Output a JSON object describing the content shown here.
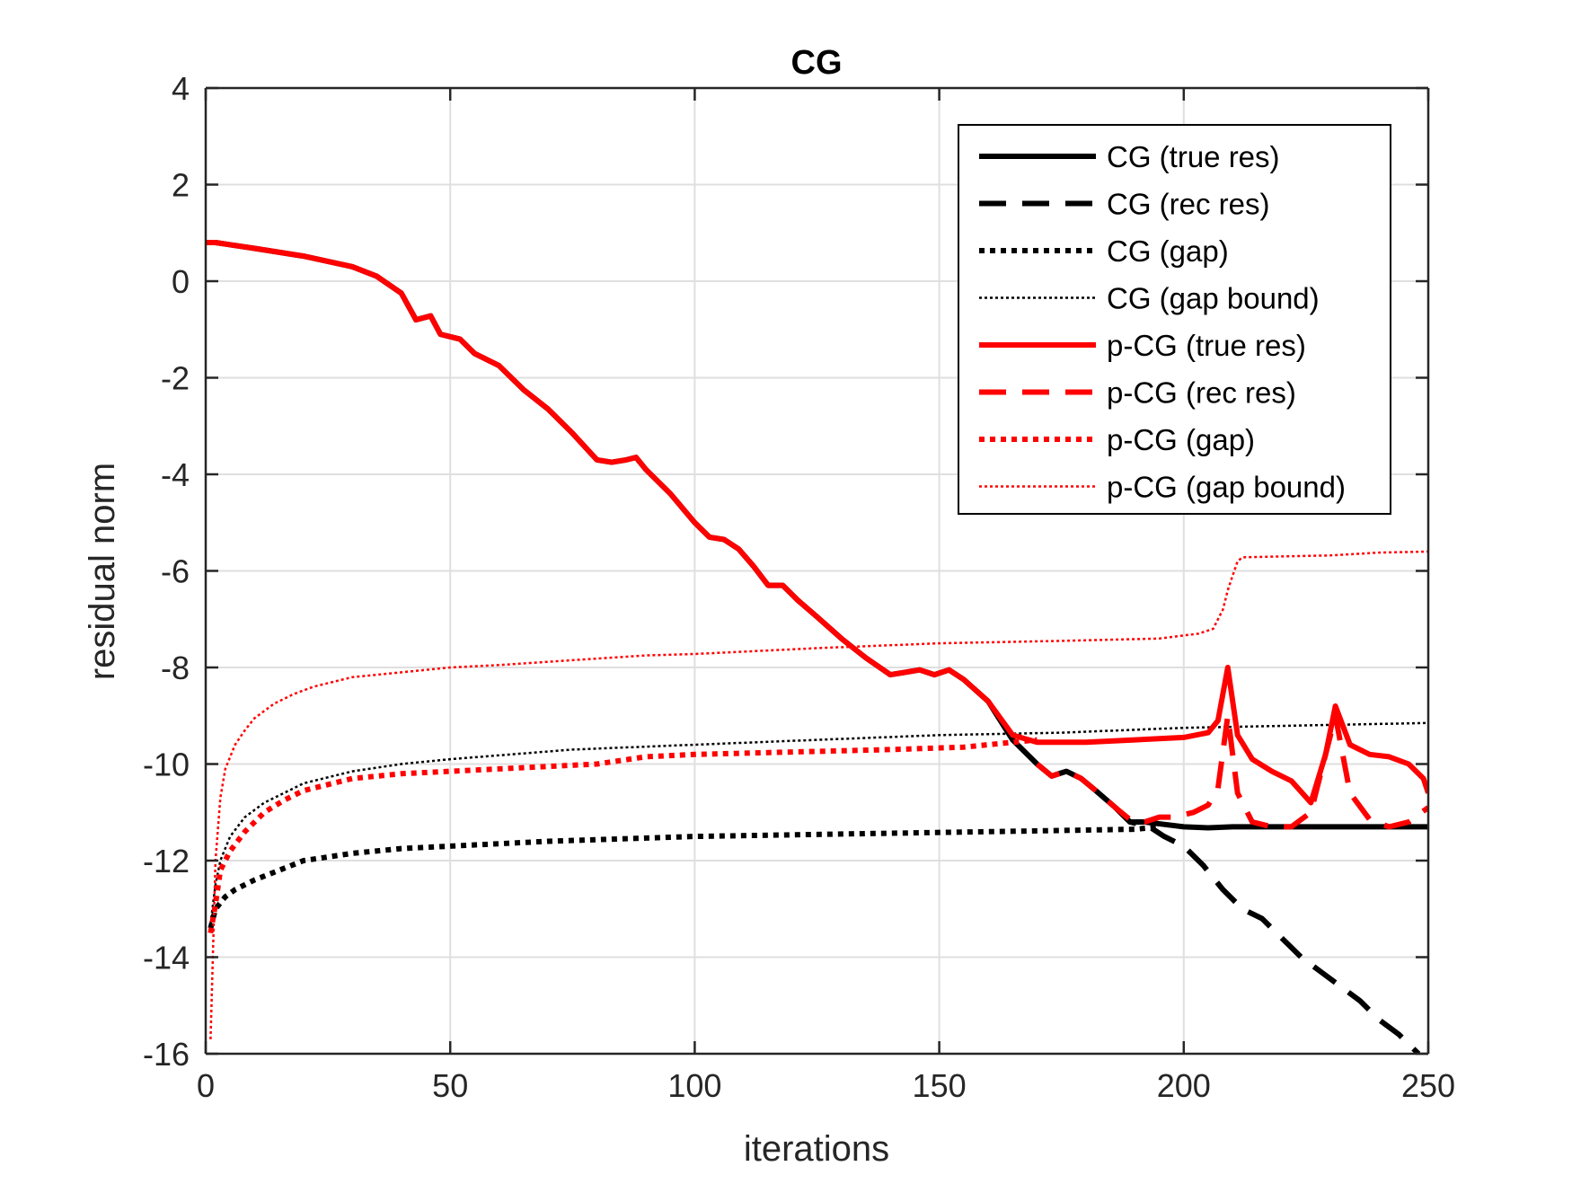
{
  "chart_data": {
    "type": "line",
    "title": "CG",
    "xlabel": "iterations",
    "ylabel": "residual norm",
    "xlim": [
      0,
      250
    ],
    "ylim": [
      -16,
      4
    ],
    "xticks": [
      0,
      50,
      100,
      150,
      200,
      250
    ],
    "yticks": [
      4,
      2,
      0,
      -2,
      -4,
      -6,
      -8,
      -10,
      -12,
      -14,
      -16
    ],
    "grid": true,
    "legend_position": "top-right",
    "colors": {
      "black": "#000000",
      "red": "#ff0000"
    },
    "series": [
      {
        "name": "CG (true res)",
        "color": "#000000",
        "style": "solid",
        "weight": "thick",
        "x": [
          0,
          2,
          10,
          20,
          30,
          35,
          40,
          43,
          46,
          48,
          52,
          55,
          60,
          65,
          70,
          75,
          80,
          83,
          86,
          88,
          90,
          95,
          100,
          103,
          106,
          109,
          112,
          115,
          118,
          121,
          125,
          130,
          135,
          140,
          143,
          146,
          149,
          152,
          155,
          160,
          165,
          170,
          173,
          176,
          179,
          182,
          186,
          189,
          192,
          196,
          200,
          205,
          210,
          220,
          230,
          240,
          250
        ],
        "values": [
          0.8,
          0.8,
          0.68,
          0.52,
          0.3,
          0.1,
          -0.25,
          -0.8,
          -0.72,
          -1.1,
          -1.2,
          -1.5,
          -1.75,
          -2.25,
          -2.65,
          -3.15,
          -3.7,
          -3.75,
          -3.7,
          -3.65,
          -3.9,
          -4.4,
          -5.0,
          -5.3,
          -5.35,
          -5.55,
          -5.9,
          -6.3,
          -6.3,
          -6.6,
          -6.95,
          -7.4,
          -7.8,
          -8.15,
          -8.1,
          -8.05,
          -8.15,
          -8.05,
          -8.25,
          -8.7,
          -9.5,
          -10.0,
          -10.25,
          -10.15,
          -10.3,
          -10.55,
          -10.9,
          -11.2,
          -11.2,
          -11.25,
          -11.3,
          -11.32,
          -11.3,
          -11.3,
          -11.3,
          -11.3,
          -11.3
        ]
      },
      {
        "name": "CG (rec res)",
        "color": "#000000",
        "style": "dashed",
        "weight": "thick",
        "x": [
          186,
          189,
          193,
          196,
          200,
          204,
          208,
          212,
          216,
          220,
          224,
          228,
          232,
          236,
          240,
          244,
          248
        ],
        "values": [
          -10.9,
          -11.2,
          -11.3,
          -11.5,
          -11.7,
          -12.1,
          -12.6,
          -13.0,
          -13.2,
          -13.6,
          -14.0,
          -14.3,
          -14.6,
          -14.9,
          -15.3,
          -15.6,
          -16.0
        ]
      },
      {
        "name": "CG (gap)",
        "color": "#000000",
        "style": "dotted",
        "weight": "thick",
        "x": [
          1,
          2,
          4,
          6,
          10,
          15,
          20,
          30,
          40,
          50,
          70,
          100,
          130,
          160,
          190,
          195
        ],
        "values": [
          -13.4,
          -13.0,
          -12.75,
          -12.6,
          -12.4,
          -12.2,
          -12.0,
          -11.85,
          -11.75,
          -11.7,
          -11.6,
          -11.5,
          -11.45,
          -11.4,
          -11.35,
          -11.3
        ]
      },
      {
        "name": "CG (gap bound)",
        "color": "#000000",
        "style": "dotted",
        "weight": "thin",
        "x": [
          1,
          2,
          3,
          5,
          8,
          12,
          16,
          20,
          30,
          40,
          50,
          75,
          100,
          125,
          150,
          175,
          200,
          225,
          250
        ],
        "values": [
          -13.3,
          -12.5,
          -12.0,
          -11.5,
          -11.1,
          -10.8,
          -10.6,
          -10.4,
          -10.15,
          -10.0,
          -9.9,
          -9.7,
          -9.6,
          -9.5,
          -9.4,
          -9.35,
          -9.25,
          -9.2,
          -9.15
        ]
      },
      {
        "name": "p-CG (true res)",
        "color": "#ff0000",
        "style": "solid",
        "weight": "thick",
        "x": [
          0,
          2,
          10,
          20,
          30,
          35,
          40,
          43,
          46,
          48,
          52,
          55,
          60,
          65,
          70,
          75,
          80,
          83,
          86,
          88,
          90,
          95,
          100,
          103,
          106,
          109,
          112,
          115,
          118,
          121,
          125,
          130,
          135,
          140,
          143,
          146,
          149,
          152,
          155,
          160,
          165,
          170,
          180,
          190,
          200,
          205,
          207,
          209,
          211,
          214,
          218,
          222,
          226,
          229,
          231,
          234,
          238,
          242,
          246,
          249,
          250
        ],
        "values": [
          0.8,
          0.8,
          0.68,
          0.52,
          0.3,
          0.1,
          -0.25,
          -0.8,
          -0.72,
          -1.1,
          -1.2,
          -1.5,
          -1.75,
          -2.25,
          -2.65,
          -3.15,
          -3.7,
          -3.75,
          -3.7,
          -3.65,
          -3.9,
          -4.4,
          -5.0,
          -5.3,
          -5.35,
          -5.55,
          -5.9,
          -6.3,
          -6.3,
          -6.6,
          -6.95,
          -7.4,
          -7.8,
          -8.15,
          -8.1,
          -8.05,
          -8.15,
          -8.05,
          -8.25,
          -8.7,
          -9.4,
          -9.55,
          -9.55,
          -9.5,
          -9.45,
          -9.35,
          -9.1,
          -8.0,
          -9.4,
          -9.9,
          -10.15,
          -10.35,
          -10.8,
          -9.8,
          -8.8,
          -9.6,
          -9.8,
          -9.85,
          -10.0,
          -10.3,
          -10.6
        ]
      },
      {
        "name": "p-CG (rec res)",
        "color": "#ff0000",
        "style": "dashed",
        "weight": "thick",
        "x": [
          170,
          173,
          176,
          179,
          182,
          186,
          189,
          192,
          195,
          198,
          202,
          205,
          207,
          209,
          211,
          214,
          218,
          222,
          226,
          229,
          231,
          234,
          238,
          242,
          246,
          250
        ],
        "values": [
          -10.0,
          -10.25,
          -10.15,
          -10.3,
          -10.55,
          -10.9,
          -11.15,
          -11.2,
          -11.1,
          -11.1,
          -11.0,
          -10.85,
          -10.5,
          -9.0,
          -10.6,
          -11.2,
          -11.3,
          -11.3,
          -11.0,
          -9.8,
          -9.0,
          -10.6,
          -11.15,
          -11.3,
          -11.2,
          -10.9
        ]
      },
      {
        "name": "p-CG (gap)",
        "color": "#ff0000",
        "style": "dotted",
        "weight": "thick",
        "x": [
          1,
          2,
          3,
          5,
          8,
          12,
          16,
          20,
          30,
          40,
          50,
          60,
          70,
          80,
          90,
          100,
          120,
          140,
          155,
          165,
          170
        ],
        "values": [
          -13.5,
          -12.9,
          -12.2,
          -11.8,
          -11.4,
          -11.0,
          -10.75,
          -10.55,
          -10.3,
          -10.2,
          -10.15,
          -10.1,
          -10.05,
          -10.0,
          -9.85,
          -9.8,
          -9.75,
          -9.7,
          -9.65,
          -9.55,
          -9.5
        ]
      },
      {
        "name": "p-CG (gap bound)",
        "color": "#ff0000",
        "style": "dotted",
        "weight": "thin",
        "x": [
          1,
          2,
          3,
          4,
          6,
          8,
          10,
          14,
          18,
          22,
          26,
          30,
          40,
          50,
          60,
          75,
          90,
          100,
          125,
          150,
          175,
          195,
          203,
          206,
          208,
          209,
          210,
          211,
          212,
          220,
          230,
          240,
          250
        ],
        "values": [
          -15.7,
          -12.0,
          -10.7,
          -10.1,
          -9.6,
          -9.3,
          -9.05,
          -8.75,
          -8.55,
          -8.4,
          -8.3,
          -8.2,
          -8.1,
          -8.0,
          -7.95,
          -7.85,
          -7.75,
          -7.72,
          -7.6,
          -7.5,
          -7.45,
          -7.4,
          -7.3,
          -7.2,
          -6.8,
          -6.4,
          -6.1,
          -5.8,
          -5.72,
          -5.7,
          -5.68,
          -5.62,
          -5.6
        ]
      }
    ]
  }
}
